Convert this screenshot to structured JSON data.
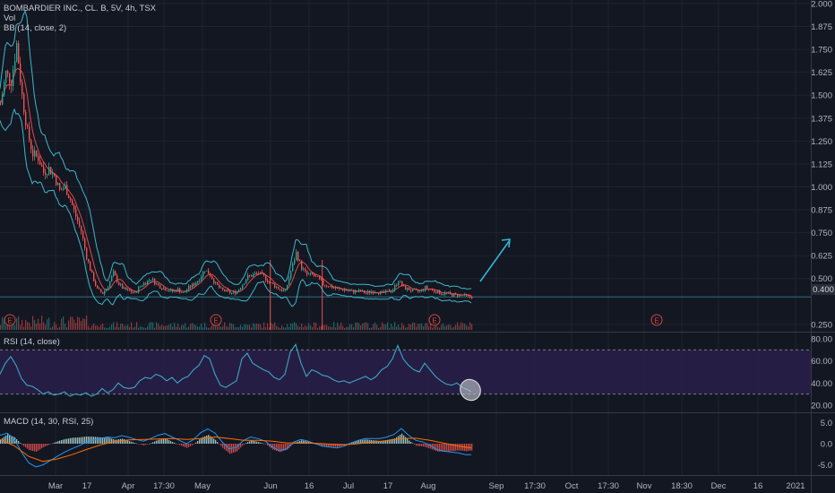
{
  "header": {
    "symbol": "BOMBARDIER INC., CL. B, 5V, 4h, TSX",
    "vol_label": "Vol",
    "bb_label": "BB (14, close, 2)"
  },
  "rsi_pane": {
    "label": "RSI (14, close)"
  },
  "macd_pane": {
    "label": "MACD (14, 30, RSI, 25)"
  },
  "colors": {
    "background": "#131722",
    "grid": "#1f2330",
    "up": "#26a69a",
    "down": "#ef5350",
    "bb": "#3fb6c8",
    "rsi_line": "#3aa6c4",
    "rsi_band": "#2a1e4a",
    "arrow": "#2fb7d4",
    "price_tag": "#2a2e39",
    "earnings": "#d4453c"
  },
  "earnings_markers": [
    "E",
    "E",
    "E",
    "E"
  ],
  "chart_data": {
    "type": "candlestick",
    "title": "BOMBARDIER INC., CL. B, 5V, 4h, TSX",
    "x_ticks": [
      "Mar",
      "17",
      "Apr",
      "17:30",
      "May",
      "Jun",
      "16",
      "Jul",
      "17",
      "Aug",
      "Sep",
      "17:30",
      "Oct",
      "17:30",
      "Nov",
      "18:30",
      "Dec",
      "16",
      "2021"
    ],
    "price_axis": {
      "ticks": [
        "2.000",
        "1.875",
        "1.750",
        "1.625",
        "1.500",
        "1.375",
        "1.250",
        "1.125",
        "1.000",
        "0.875",
        "0.750",
        "0.625",
        "0.500",
        "0.400",
        "0.250"
      ],
      "ylim": [
        0.22,
        2.0
      ],
      "last_price": "0.400"
    },
    "price_path": [
      [
        0,
        1.45
      ],
      [
        6,
        1.62
      ],
      [
        12,
        1.58
      ],
      [
        18,
        1.78
      ],
      [
        24,
        1.5
      ],
      [
        30,
        1.3
      ],
      [
        36,
        1.18
      ],
      [
        42,
        1.16
      ],
      [
        48,
        1.08
      ],
      [
        54,
        1.1
      ],
      [
        60,
        1.06
      ],
      [
        66,
        0.98
      ],
      [
        72,
        1.0
      ],
      [
        78,
        0.93
      ],
      [
        84,
        0.84
      ],
      [
        90,
        0.76
      ],
      [
        96,
        0.62
      ],
      [
        102,
        0.52
      ],
      [
        108,
        0.44
      ],
      [
        114,
        0.42
      ],
      [
        120,
        0.46
      ],
      [
        126,
        0.53
      ],
      [
        132,
        0.47
      ],
      [
        138,
        0.44
      ],
      [
        144,
        0.43
      ],
      [
        150,
        0.42
      ],
      [
        156,
        0.46
      ],
      [
        162,
        0.48
      ],
      [
        168,
        0.5
      ],
      [
        174,
        0.47
      ],
      [
        180,
        0.45
      ],
      [
        186,
        0.44
      ],
      [
        192,
        0.43
      ],
      [
        198,
        0.44
      ],
      [
        204,
        0.42
      ],
      [
        210,
        0.45
      ],
      [
        216,
        0.47
      ],
      [
        222,
        0.5
      ],
      [
        228,
        0.55
      ],
      [
        234,
        0.52
      ],
      [
        240,
        0.47
      ],
      [
        246,
        0.44
      ],
      [
        252,
        0.43
      ],
      [
        258,
        0.42
      ],
      [
        264,
        0.43
      ],
      [
        270,
        0.47
      ],
      [
        276,
        0.51
      ],
      [
        282,
        0.52
      ],
      [
        288,
        0.53
      ],
      [
        294,
        0.51
      ],
      [
        300,
        0.48
      ],
      [
        306,
        0.46
      ],
      [
        312,
        0.44
      ],
      [
        318,
        0.43
      ],
      [
        324,
        0.54
      ],
      [
        330,
        0.64
      ],
      [
        336,
        0.56
      ],
      [
        342,
        0.52
      ],
      [
        348,
        0.52
      ],
      [
        354,
        0.5
      ],
      [
        360,
        0.47
      ],
      [
        366,
        0.46
      ],
      [
        372,
        0.45
      ],
      [
        378,
        0.44
      ],
      [
        384,
        0.44
      ],
      [
        390,
        0.43
      ],
      [
        396,
        0.43
      ],
      [
        402,
        0.43
      ],
      [
        408,
        0.42
      ],
      [
        414,
        0.43
      ],
      [
        420,
        0.43
      ],
      [
        426,
        0.42
      ],
      [
        432,
        0.43
      ],
      [
        438,
        0.44
      ],
      [
        444,
        0.49
      ],
      [
        450,
        0.45
      ],
      [
        456,
        0.44
      ],
      [
        462,
        0.43
      ],
      [
        468,
        0.43
      ],
      [
        474,
        0.45
      ],
      [
        480,
        0.44
      ],
      [
        486,
        0.43
      ],
      [
        492,
        0.42
      ],
      [
        498,
        0.42
      ],
      [
        504,
        0.41
      ],
      [
        510,
        0.41
      ],
      [
        516,
        0.41
      ],
      [
        522,
        0.4
      ],
      [
        526,
        0.4
      ]
    ],
    "rsi": {
      "ticks": [
        "80.00",
        "60.00",
        "40.00",
        "20.00"
      ],
      "ylim": [
        15,
        85
      ],
      "band": [
        30,
        70
      ],
      "path": [
        [
          0,
          48
        ],
        [
          6,
          58
        ],
        [
          12,
          64
        ],
        [
          18,
          56
        ],
        [
          24,
          44
        ],
        [
          30,
          38
        ],
        [
          36,
          37
        ],
        [
          42,
          34
        ],
        [
          48,
          30
        ],
        [
          54,
          32
        ],
        [
          60,
          29
        ],
        [
          66,
          30
        ],
        [
          72,
          32
        ],
        [
          78,
          28
        ],
        [
          84,
          30
        ],
        [
          90,
          29
        ],
        [
          96,
          31
        ],
        [
          102,
          28
        ],
        [
          108,
          30
        ],
        [
          114,
          35
        ],
        [
          120,
          31
        ],
        [
          126,
          34
        ],
        [
          132,
          40
        ],
        [
          138,
          36
        ],
        [
          144,
          35
        ],
        [
          150,
          36
        ],
        [
          156,
          42
        ],
        [
          162,
          45
        ],
        [
          168,
          44
        ],
        [
          174,
          48
        ],
        [
          180,
          46
        ],
        [
          186,
          42
        ],
        [
          192,
          45
        ],
        [
          198,
          40
        ],
        [
          204,
          44
        ],
        [
          210,
          46
        ],
        [
          216,
          52
        ],
        [
          222,
          56
        ],
        [
          228,
          65
        ],
        [
          234,
          62
        ],
        [
          240,
          48
        ],
        [
          246,
          38
        ],
        [
          252,
          36
        ],
        [
          258,
          39
        ],
        [
          264,
          42
        ],
        [
          270,
          62
        ],
        [
          276,
          67
        ],
        [
          282,
          58
        ],
        [
          288,
          55
        ],
        [
          294,
          52
        ],
        [
          300,
          50
        ],
        [
          306,
          45
        ],
        [
          312,
          43
        ],
        [
          318,
          48
        ],
        [
          324,
          68
        ],
        [
          330,
          75
        ],
        [
          336,
          58
        ],
        [
          342,
          46
        ],
        [
          348,
          52
        ],
        [
          354,
          50
        ],
        [
          360,
          47
        ],
        [
          366,
          46
        ],
        [
          372,
          43
        ],
        [
          378,
          41
        ],
        [
          384,
          42
        ],
        [
          390,
          40
        ],
        [
          396,
          42
        ],
        [
          402,
          44
        ],
        [
          408,
          46
        ],
        [
          414,
          43
        ],
        [
          420,
          46
        ],
        [
          426,
          52
        ],
        [
          432,
          55
        ],
        [
          438,
          62
        ],
        [
          444,
          74
        ],
        [
          450,
          62
        ],
        [
          456,
          56
        ],
        [
          462,
          52
        ],
        [
          468,
          50
        ],
        [
          474,
          58
        ],
        [
          480,
          52
        ],
        [
          486,
          46
        ],
        [
          492,
          42
        ],
        [
          498,
          39
        ],
        [
          504,
          38
        ],
        [
          510,
          40
        ],
        [
          516,
          36
        ],
        [
          522,
          34
        ],
        [
          526,
          32
        ]
      ]
    },
    "macd": {
      "ticks": [
        "5.0",
        "0.0",
        "-5.0"
      ],
      "ylim": [
        -7,
        7
      ],
      "macd_path": [
        [
          0,
          2
        ],
        [
          8,
          2.5
        ],
        [
          16,
          1
        ],
        [
          24,
          -2
        ],
        [
          32,
          -4.5
        ],
        [
          40,
          -5.5
        ],
        [
          48,
          -5
        ],
        [
          56,
          -4
        ],
        [
          64,
          -3
        ],
        [
          72,
          -2
        ],
        [
          80,
          -1.2
        ],
        [
          88,
          -0.5
        ],
        [
          96,
          0.3
        ],
        [
          104,
          0.8
        ],
        [
          112,
          1.2
        ],
        [
          120,
          1.6
        ],
        [
          128,
          1.4
        ],
        [
          136,
          1.9
        ],
        [
          144,
          1.5
        ],
        [
          152,
          1.0
        ],
        [
          160,
          0.6
        ],
        [
          168,
          1.2
        ],
        [
          176,
          2.0
        ],
        [
          184,
          2.4
        ],
        [
          192,
          1.6
        ],
        [
          200,
          0.8
        ],
        [
          208,
          0.0
        ],
        [
          216,
          1.0
        ],
        [
          224,
          2.6
        ],
        [
          232,
          3.5
        ],
        [
          240,
          2.5
        ],
        [
          248,
          0.4
        ],
        [
          256,
          -1.2
        ],
        [
          264,
          -0.8
        ],
        [
          272,
          0.8
        ],
        [
          280,
          1.6
        ],
        [
          288,
          1.2
        ],
        [
          296,
          0.6
        ],
        [
          304,
          -0.8
        ],
        [
          312,
          -1.6
        ],
        [
          320,
          -1.2
        ],
        [
          328,
          0.4
        ],
        [
          336,
          1.0
        ],
        [
          344,
          0.6
        ],
        [
          352,
          0.0
        ],
        [
          360,
          -0.6
        ],
        [
          368,
          -0.8
        ],
        [
          376,
          -1.0
        ],
        [
          384,
          -0.6
        ],
        [
          392,
          0.2
        ],
        [
          400,
          0.8
        ],
        [
          408,
          1.2
        ],
        [
          416,
          1.2
        ],
        [
          424,
          1.2
        ],
        [
          432,
          1.6
        ],
        [
          440,
          2.2
        ],
        [
          448,
          3.6
        ],
        [
          456,
          2.0
        ],
        [
          464,
          0.8
        ],
        [
          472,
          0.4
        ],
        [
          480,
          -0.4
        ],
        [
          488,
          -1.4
        ],
        [
          496,
          -1.8
        ],
        [
          504,
          -2.0
        ],
        [
          512,
          -2.2
        ],
        [
          520,
          -2.6
        ],
        [
          526,
          -2.6
        ]
      ],
      "signal_path": [
        [
          0,
          1.0
        ],
        [
          16,
          -0.5
        ],
        [
          32,
          -3.0
        ],
        [
          48,
          -4.2
        ],
        [
          64,
          -3.6
        ],
        [
          80,
          -2.6
        ],
        [
          96,
          -1.4
        ],
        [
          112,
          -0.3
        ],
        [
          128,
          0.5
        ],
        [
          144,
          0.9
        ],
        [
          160,
          1.0
        ],
        [
          176,
          1.1
        ],
        [
          192,
          1.2
        ],
        [
          208,
          1.0
        ],
        [
          224,
          1.2
        ],
        [
          240,
          1.6
        ],
        [
          256,
          1.2
        ],
        [
          272,
          0.8
        ],
        [
          288,
          0.8
        ],
        [
          304,
          0.6
        ],
        [
          320,
          0.2
        ],
        [
          336,
          0.2
        ],
        [
          352,
          0.1
        ],
        [
          368,
          -0.1
        ],
        [
          384,
          -0.3
        ],
        [
          400,
          0.0
        ],
        [
          416,
          0.4
        ],
        [
          432,
          0.7
        ],
        [
          448,
          1.2
        ],
        [
          464,
          1.3
        ],
        [
          480,
          0.8
        ],
        [
          496,
          0.1
        ],
        [
          512,
          -0.6
        ],
        [
          526,
          -1.0
        ]
      ]
    }
  }
}
